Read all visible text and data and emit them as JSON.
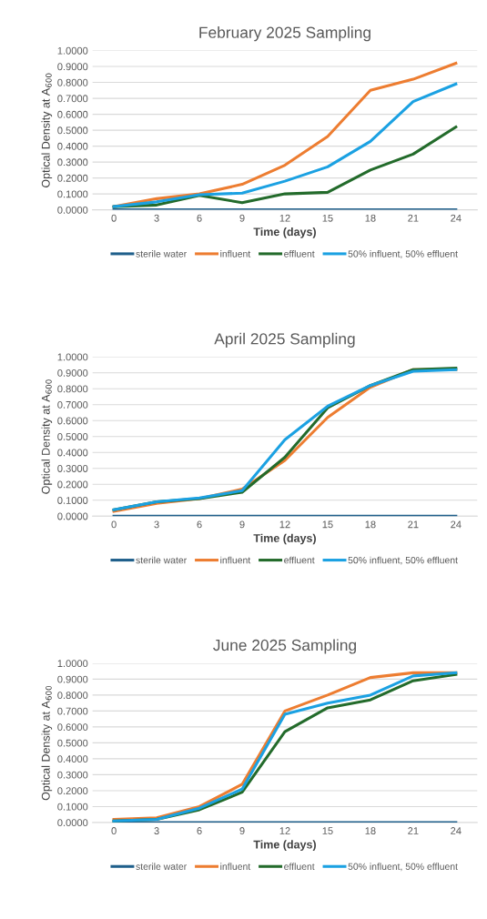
{
  "chart_data": [
    {
      "type": "line",
      "title": "February 2025 Sampling",
      "xlabel": "Time (days)",
      "ylabel": "Optical Density at A$_{600}$",
      "categories": [
        "0",
        "3",
        "6",
        "9",
        "12",
        "15",
        "18",
        "21",
        "24"
      ],
      "ylim": [
        0,
        1
      ],
      "yticks": [
        {
          "value": 0,
          "label": "0.0000"
        },
        {
          "value": 0.1,
          "label": "0.1000"
        },
        {
          "value": 0.2,
          "label": "0.2000"
        },
        {
          "value": 0.3,
          "label": "0.3000"
        },
        {
          "value": 0.4,
          "label": "0.4000"
        },
        {
          "value": 0.5,
          "label": "0.5000"
        },
        {
          "value": 0.6,
          "label": "0.6000"
        },
        {
          "value": 0.7,
          "label": "0.7000"
        },
        {
          "value": 0.8,
          "label": "0.8000"
        },
        {
          "value": 0.9,
          "label": "0.9000"
        },
        {
          "value": 1,
          "label": "1.0000"
        }
      ],
      "grid": "y",
      "legend": "bottom",
      "marker": "none",
      "line_style": "solid",
      "series": [
        {
          "name": "sterile water",
          "color": "#1f5f8b",
          "values": [
            0,
            0,
            0,
            0,
            0,
            0,
            0,
            0,
            0
          ]
        },
        {
          "name": "influent",
          "color": "#ed7d31",
          "values": [
            0.02,
            0.07,
            0.1,
            0.16,
            0.28,
            0.46,
            0.75,
            0.82,
            0.92
          ]
        },
        {
          "name": "effluent",
          "color": "#236b2b",
          "values": [
            0.02,
            0.03,
            0.09,
            0.045,
            0.1,
            0.11,
            0.25,
            0.35,
            0.52
          ]
        },
        {
          "name": "50% influent, 50% effluent",
          "color": "#1ba1e2",
          "values": [
            0.02,
            0.05,
            0.095,
            0.105,
            0.18,
            0.27,
            0.43,
            0.68,
            0.79
          ]
        }
      ]
    },
    {
      "type": "line",
      "title": "April 2025 Sampling",
      "xlabel": "Time (days)",
      "ylabel": "Optical Density at A$_{600}$",
      "categories": [
        "0",
        "3",
        "6",
        "9",
        "12",
        "15",
        "18",
        "21",
        "24"
      ],
      "ylim": [
        0,
        1
      ],
      "yticks": [
        {
          "value": 0,
          "label": "0.0000"
        },
        {
          "value": 0.1,
          "label": "0.1000"
        },
        {
          "value": 0.2,
          "label": "0.2000"
        },
        {
          "value": 0.3,
          "label": "0.3000"
        },
        {
          "value": 0.4,
          "label": "0.4000"
        },
        {
          "value": 0.5,
          "label": "0.5000"
        },
        {
          "value": 0.6,
          "label": "0.6000"
        },
        {
          "value": 0.7,
          "label": "0.7000"
        },
        {
          "value": 0.8,
          "label": "0.8000"
        },
        {
          "value": 0.9,
          "label": "0.9000"
        },
        {
          "value": 1,
          "label": "1.0000"
        }
      ],
      "grid": "y",
      "legend": "bottom",
      "marker": "none",
      "line_style": "solid",
      "series": [
        {
          "name": "sterile water",
          "color": "#1f5f8b",
          "values": [
            0,
            0,
            0,
            0,
            0,
            0,
            0,
            0,
            0
          ]
        },
        {
          "name": "influent",
          "color": "#ed7d31",
          "values": [
            0.03,
            0.08,
            0.11,
            0.17,
            0.35,
            0.62,
            0.81,
            0.92,
            0.92
          ]
        },
        {
          "name": "effluent",
          "color": "#236b2b",
          "values": [
            0.04,
            0.09,
            0.11,
            0.15,
            0.37,
            0.68,
            0.82,
            0.92,
            0.93
          ]
        },
        {
          "name": "50% influent, 50% effluent",
          "color": "#1ba1e2",
          "values": [
            0.04,
            0.09,
            0.115,
            0.16,
            0.48,
            0.69,
            0.82,
            0.91,
            0.92
          ]
        }
      ]
    },
    {
      "type": "line",
      "title": "June 2025 Sampling",
      "xlabel": "Time (days)",
      "ylabel": "Optical Density at A$_{600}$",
      "categories": [
        "0",
        "3",
        "6",
        "9",
        "12",
        "15",
        "18",
        "21",
        "24"
      ],
      "ylim": [
        0,
        1
      ],
      "yticks": [
        {
          "value": 0,
          "label": "0.0000"
        },
        {
          "value": 0.1,
          "label": "0.1000"
        },
        {
          "value": 0.2,
          "label": "0.2000"
        },
        {
          "value": 0.3,
          "label": "0.3000"
        },
        {
          "value": 0.4,
          "label": "0.4000"
        },
        {
          "value": 0.5,
          "label": "0.5000"
        },
        {
          "value": 0.6,
          "label": "0.6000"
        },
        {
          "value": 0.7,
          "label": "0.7000"
        },
        {
          "value": 0.8,
          "label": "0.8000"
        },
        {
          "value": 0.9,
          "label": "0.9000"
        },
        {
          "value": 1,
          "label": "1.0000"
        }
      ],
      "grid": "y",
      "legend": "bottom",
      "marker": "none",
      "line_style": "solid",
      "series": [
        {
          "name": "sterile water",
          "color": "#1f5f8b",
          "values": [
            0,
            0,
            0,
            0,
            0,
            0,
            0,
            0,
            0
          ]
        },
        {
          "name": "influent",
          "color": "#ed7d31",
          "values": [
            0.02,
            0.03,
            0.1,
            0.24,
            0.7,
            0.8,
            0.91,
            0.94,
            0.94
          ]
        },
        {
          "name": "effluent",
          "color": "#236b2b",
          "values": [
            0.01,
            0.02,
            0.08,
            0.19,
            0.57,
            0.72,
            0.77,
            0.89,
            0.93
          ]
        },
        {
          "name": "50% influent, 50% effluent",
          "color": "#1ba1e2",
          "values": [
            0.01,
            0.02,
            0.09,
            0.21,
            0.68,
            0.75,
            0.8,
            0.92,
            0.94
          ]
        }
      ]
    }
  ]
}
